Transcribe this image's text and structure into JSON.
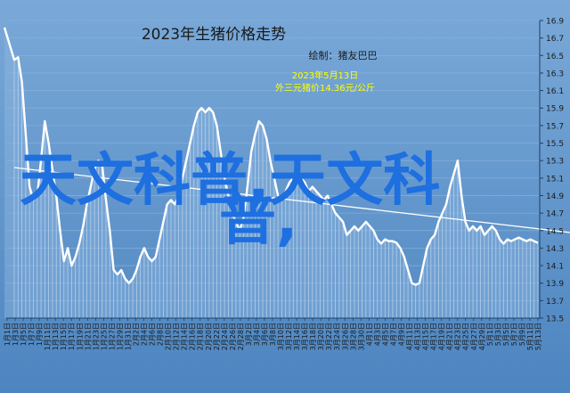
{
  "chart_data": {
    "type": "line",
    "title": "2023年生猪价格走势",
    "subtitle": "绘制：猪友巴巴",
    "annotation": {
      "date": "2023年5月13日",
      "text": "外三元猪价14.36元/公斤",
      "color": "#ffff00"
    },
    "watermark": {
      "line1": "天文科普,天文科",
      "line2": "普,",
      "color": "#1e6fe0"
    },
    "ylim": [
      13.5,
      16.9
    ],
    "y_ticks": [
      "16.9",
      "16.7",
      "16.5",
      "16.3",
      "16.1",
      "15.9",
      "15.7",
      "15.5",
      "15.3",
      "15.1",
      "14.9",
      "14.7",
      "14.5",
      "14.3",
      "14.1",
      "13.9",
      "13.7",
      "13.5"
    ],
    "x_ticks": [
      "1月1日",
      "1月3日",
      "1月5日",
      "1月7日",
      "1月9日",
      "1月11日",
      "1月13日",
      "1月15日",
      "1月17日",
      "1月19日",
      "1月21日",
      "1月23日",
      "1月25日",
      "1月27日",
      "1月29日",
      "1月31日",
      "2月2日",
      "2月4日",
      "2月6日",
      "2月8日",
      "2月10日",
      "2月12日",
      "2月14日",
      "2月16日",
      "2月18日",
      "2月20日",
      "2月22日",
      "2月24日",
      "2月26日",
      "2月28日",
      "3月2日",
      "3月4日",
      "3月6日",
      "3月8日",
      "3月10日",
      "3月12日",
      "3月14日",
      "3月16日",
      "3月18日",
      "3月20日",
      "3月22日",
      "3月24日",
      "3月26日",
      "3月28日",
      "3月30日",
      "4月1日",
      "4月3日",
      "4月5日",
      "4月7日",
      "4月9日",
      "4月11日",
      "4月13日",
      "4月15日",
      "4月17日",
      "4月19日",
      "4月21日",
      "4月23日",
      "4月25日",
      "4月27日",
      "4月29日",
      "5月1日",
      "5月3日",
      "5月5日",
      "5月7日",
      "5月9日",
      "5月11日",
      "5月13日"
    ],
    "series": [
      {
        "values": [
          16.45,
          16.48,
          16.2,
          15.6,
          15.0,
          14.85,
          14.9,
          15.3,
          15.75,
          15.5,
          15.2,
          14.9,
          14.5,
          14.15,
          14.3,
          14.1,
          14.2,
          14.35,
          14.55,
          14.8,
          15.0,
          15.2,
          15.3,
          15.25,
          14.85,
          14.5,
          14.05,
          14.0,
          14.05,
          13.95,
          13.9,
          13.95,
          14.05,
          14.2,
          14.3,
          14.2,
          14.15,
          14.2,
          14.4,
          14.6,
          14.8,
          14.85,
          14.8,
          14.9,
          15.1,
          15.3,
          15.5,
          15.7,
          15.85,
          15.9,
          15.85,
          15.9,
          15.85,
          15.7,
          15.4,
          15.1,
          14.9,
          14.7,
          14.6,
          14.5,
          14.65,
          15.0,
          15.4,
          15.6,
          15.75,
          15.7,
          15.55,
          15.3,
          15.1,
          14.9,
          14.85,
          14.95,
          15.05,
          15.1,
          15.05,
          15.1,
          15.05,
          14.95,
          15.0,
          14.95,
          14.9,
          14.85,
          14.9,
          14.8,
          14.7,
          14.65,
          14.6,
          14.45,
          14.5,
          14.55,
          14.5,
          14.55,
          14.6,
          14.55,
          14.5,
          14.4,
          14.35,
          14.4,
          14.38,
          14.38,
          14.36,
          14.3,
          14.2,
          14.05,
          13.9,
          13.88,
          13.9,
          14.1,
          14.3,
          14.4,
          14.45,
          14.6,
          14.7,
          14.8,
          15.0,
          15.15,
          15.3,
          14.9,
          14.6,
          14.5,
          14.55,
          14.5,
          14.55,
          14.45,
          14.5,
          14.55,
          14.5,
          14.4,
          14.35,
          14.4,
          14.38,
          14.4,
          14.42,
          14.4,
          14.38,
          14.4,
          14.38,
          14.36
        ]
      },
      {
        "start": [
          16.82
        ],
        "trend_from": [
          1,
          15.22
        ],
        "trend_to": [
          148,
          14.47
        ]
      }
    ]
  }
}
